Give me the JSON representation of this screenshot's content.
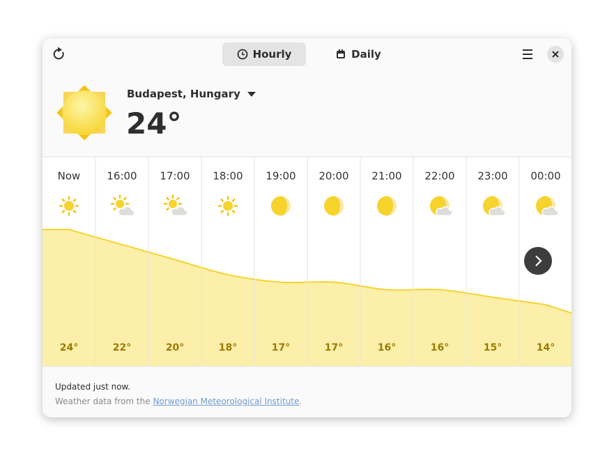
{
  "header": {
    "tabs": [
      "Hourly",
      "Daily"
    ]
  },
  "location": "Budapest, Hungary",
  "current_temperature": "24°",
  "hourly": {
    "times": [
      "Now",
      "16:00",
      "17:00",
      "18:00",
      "19:00",
      "20:00",
      "21:00",
      "22:00",
      "23:00",
      "00:00"
    ],
    "values": [
      24,
      22,
      20,
      18,
      17,
      17,
      16,
      16,
      15,
      14
    ],
    "value_labels": [
      "24°",
      "22°",
      "20°",
      "18°",
      "17°",
      "17°",
      "16°",
      "16°",
      "15°",
      "14°"
    ]
  },
  "footer": {
    "updated": "Updated just now.",
    "source_prefix": "Weather data from the ",
    "source_link": "Norwegian Meteorological Institute",
    "source_suffix": "."
  }
}
